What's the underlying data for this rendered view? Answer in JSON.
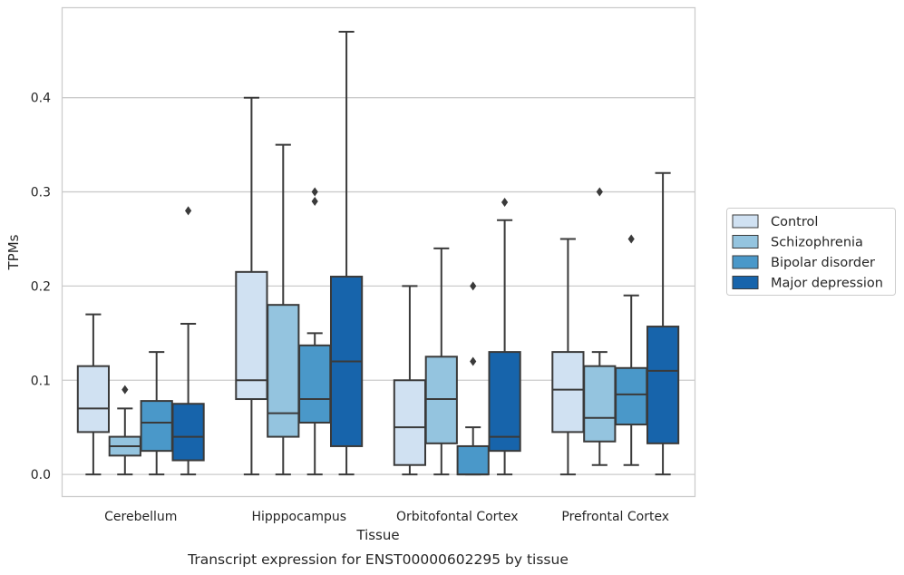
{
  "caption": "Transcript expression for ENST00000602295 by tissue",
  "chart_data": {
    "type": "box",
    "xlabel": "Tissue",
    "ylabel": "TPMs",
    "ylim": [
      -0.023,
      0.496
    ],
    "yticks": [
      "0.0",
      "0.1",
      "0.2",
      "0.3",
      "0.4"
    ],
    "grid": "horizontal",
    "legend_position": "right",
    "categories": [
      "Cerebellum",
      "Hipppocampus",
      "Orbitofontal Cortex",
      "Prefrontal Cortex"
    ],
    "series": [
      {
        "name": "Control",
        "color": "#d0e1f2",
        "boxes": [
          {
            "whislo": 0.0,
            "q1": 0.045,
            "med": 0.07,
            "q3": 0.115,
            "whishi": 0.17,
            "fliers": []
          },
          {
            "whislo": 0.0,
            "q1": 0.08,
            "med": 0.1,
            "q3": 0.215,
            "whishi": 0.4,
            "fliers": []
          },
          {
            "whislo": 0.0,
            "q1": 0.01,
            "med": 0.05,
            "q3": 0.1,
            "whishi": 0.2,
            "fliers": []
          },
          {
            "whislo": 0.0,
            "q1": 0.045,
            "med": 0.09,
            "q3": 0.13,
            "whishi": 0.25,
            "fliers": []
          }
        ]
      },
      {
        "name": "Schizophrenia",
        "color": "#94c4df",
        "boxes": [
          {
            "whislo": 0.0,
            "q1": 0.02,
            "med": 0.03,
            "q3": 0.04,
            "whishi": 0.07,
            "fliers": [
              0.09
            ]
          },
          {
            "whislo": 0.0,
            "q1": 0.04,
            "med": 0.065,
            "q3": 0.18,
            "whishi": 0.35,
            "fliers": []
          },
          {
            "whislo": 0.0,
            "q1": 0.033,
            "med": 0.08,
            "q3": 0.125,
            "whishi": 0.24,
            "fliers": []
          },
          {
            "whislo": 0.01,
            "q1": 0.035,
            "med": 0.06,
            "q3": 0.115,
            "whishi": 0.13,
            "fliers": [
              0.3
            ]
          }
        ]
      },
      {
        "name": "Bipolar disorder",
        "color": "#4a98c9",
        "boxes": [
          {
            "whislo": 0.0,
            "q1": 0.025,
            "med": 0.055,
            "q3": 0.078,
            "whishi": 0.13,
            "fliers": []
          },
          {
            "whislo": 0.0,
            "q1": 0.055,
            "med": 0.08,
            "q3": 0.137,
            "whishi": 0.15,
            "fliers": [
              0.29,
              0.3
            ]
          },
          {
            "whislo": 0.0,
            "q1": 0.0,
            "med": 0.0,
            "q3": 0.03,
            "whishi": 0.05,
            "fliers": [
              0.12,
              0.2
            ]
          },
          {
            "whislo": 0.01,
            "q1": 0.053,
            "med": 0.085,
            "q3": 0.113,
            "whishi": 0.19,
            "fliers": [
              0.25
            ]
          }
        ]
      },
      {
        "name": "Major depression",
        "color": "#1764ab",
        "boxes": [
          {
            "whislo": 0.0,
            "q1": 0.015,
            "med": 0.04,
            "q3": 0.075,
            "whishi": 0.16,
            "fliers": [
              0.28
            ]
          },
          {
            "whislo": 0.0,
            "q1": 0.03,
            "med": 0.12,
            "q3": 0.21,
            "whishi": 0.47,
            "fliers": []
          },
          {
            "whislo": 0.0,
            "q1": 0.025,
            "med": 0.04,
            "q3": 0.13,
            "whishi": 0.27,
            "fliers": [
              0.289
            ]
          },
          {
            "whislo": 0.0,
            "q1": 0.033,
            "med": 0.11,
            "q3": 0.157,
            "whishi": 0.32,
            "fliers": []
          }
        ]
      }
    ]
  }
}
